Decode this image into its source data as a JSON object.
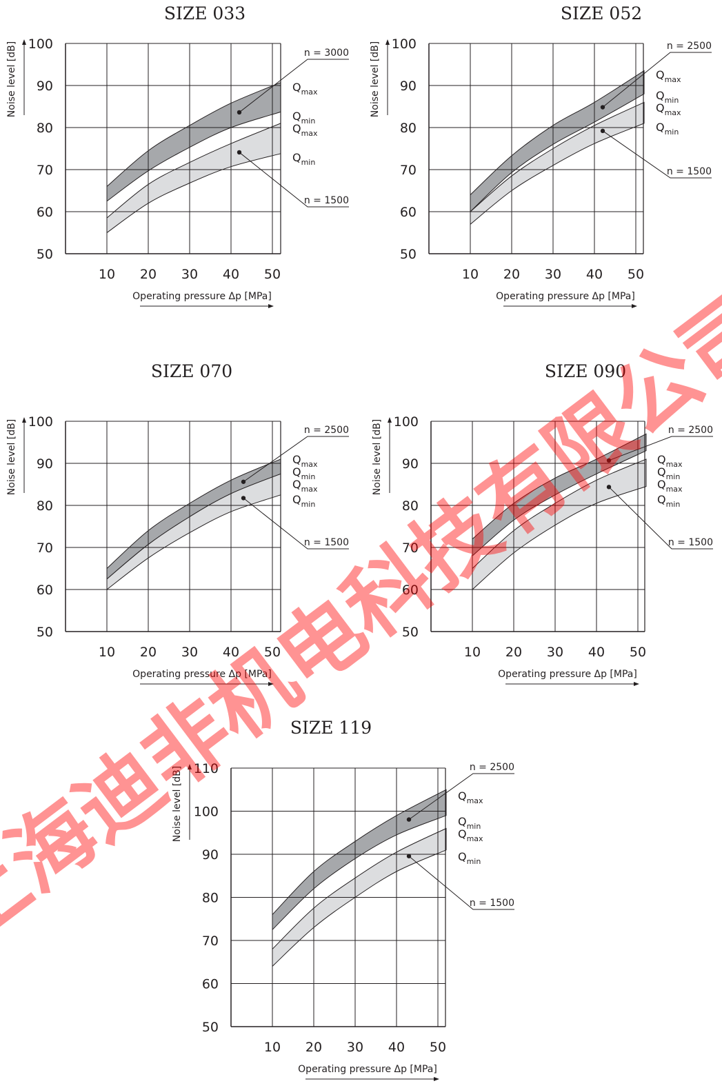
{
  "chart_data": [
    {
      "type": "area",
      "title": "SIZE 033",
      "xlabel": "Operating pressure Δp [MPa]",
      "ylabel": "Noise level [dB]",
      "xticks": [
        10,
        20,
        30,
        40,
        50
      ],
      "yticks": [
        50,
        60,
        70,
        80,
        90,
        100
      ],
      "xlim": [
        0,
        52
      ],
      "ylim": [
        50,
        100
      ],
      "series": [
        {
          "name": "n = 3000",
          "type": "band",
          "shade": "dark",
          "x": [
            10,
            20,
            30,
            40,
            52
          ],
          "upper": [
            66.0,
            74.5,
            80.5,
            85.8,
            90.7
          ],
          "lower": [
            62.5,
            69.7,
            75.3,
            80.0,
            83.7
          ]
        },
        {
          "name": "n = 1500",
          "type": "band",
          "shade": "light",
          "x": [
            10,
            20,
            30,
            40,
            52
          ],
          "upper": [
            58.5,
            66.5,
            71.7,
            76.2,
            81.0
          ],
          "lower": [
            55.0,
            62.0,
            66.8,
            70.7,
            73.8
          ]
        }
      ],
      "series_labels": [
        {
          "text": "Q",
          "sub": "max"
        },
        {
          "text": "Q",
          "sub": "min"
        },
        {
          "text": "Q",
          "sub": "max"
        },
        {
          "text": "Q",
          "sub": "min"
        }
      ]
    },
    {
      "type": "area",
      "title": "SIZE 052",
      "xlabel": "Operating pressure Δp [MPa]",
      "ylabel": "Noise level [dB]",
      "xticks": [
        10,
        20,
        30,
        40,
        50
      ],
      "yticks": [
        50,
        60,
        70,
        80,
        90,
        100
      ],
      "xlim": [
        0,
        52
      ],
      "ylim": [
        50,
        100
      ],
      "series": [
        {
          "name": "n = 2500",
          "type": "band",
          "shade": "dark",
          "x": [
            10,
            20,
            30,
            40,
            52
          ],
          "upper": [
            64.0,
            73.3,
            80.5,
            86.0,
            93.5
          ],
          "lower": [
            60.0,
            69.3,
            76.0,
            81.3,
            88.0
          ]
        },
        {
          "name": "n = 1500",
          "type": "band",
          "shade": "light",
          "x": [
            10,
            20,
            30,
            40,
            52
          ],
          "upper": [
            60.0,
            68.5,
            75.0,
            80.5,
            86.0
          ],
          "lower": [
            57.0,
            65.0,
            71.0,
            76.2,
            81.0
          ]
        }
      ],
      "series_labels": [
        {
          "text": "Q",
          "sub": "max"
        },
        {
          "text": "Q",
          "sub": "min"
        },
        {
          "text": "Q",
          "sub": "max"
        },
        {
          "text": "Q",
          "sub": "min"
        }
      ]
    },
    {
      "type": "area",
      "title": "SIZE 070",
      "xlabel": "Operating pressure Δp [MPa]",
      "ylabel": "Noise level [dB]",
      "xticks": [
        10,
        20,
        30,
        40,
        50
      ],
      "yticks": [
        50,
        60,
        70,
        80,
        90,
        100
      ],
      "xlim": [
        0,
        52
      ],
      "ylim": [
        50,
        100
      ],
      "series": [
        {
          "name": "n = 2500",
          "type": "band",
          "shade": "dark",
          "x": [
            10,
            20,
            30,
            40,
            52
          ],
          "upper": [
            65.0,
            74.0,
            80.5,
            86.0,
            91.0
          ],
          "lower": [
            62.5,
            70.7,
            77.3,
            82.8,
            87.5
          ]
        },
        {
          "name": "n = 1500",
          "type": "band",
          "shade": "light",
          "x": [
            10,
            20,
            30,
            40,
            52
          ],
          "upper": [
            62.5,
            70.7,
            77.3,
            82.8,
            87.5
          ],
          "lower": [
            60.0,
            67.5,
            73.5,
            78.5,
            82.5
          ]
        }
      ],
      "series_labels": [
        {
          "text": "Q",
          "sub": "max"
        },
        {
          "text": "Q",
          "sub": "min"
        },
        {
          "text": "Q",
          "sub": "max"
        },
        {
          "text": "Q",
          "sub": "min"
        }
      ]
    },
    {
      "type": "area",
      "title": "SIZE 090",
      "xlabel": "Operating pressure Δp [MPa]",
      "ylabel": "Noise level [dB]",
      "xticks": [
        10,
        20,
        30,
        40,
        50
      ],
      "yticks": [
        50,
        60,
        70,
        80,
        90,
        100
      ],
      "xlim": [
        0,
        52
      ],
      "ylim": [
        50,
        100
      ],
      "series": [
        {
          "name": "n = 2500",
          "type": "band",
          "shade": "dark",
          "x": [
            10,
            20,
            30,
            40,
            52
          ],
          "upper": [
            72.0,
            80.5,
            86.5,
            91.0,
            97.0
          ],
          "lower": [
            68.0,
            76.5,
            82.5,
            87.5,
            93.0
          ]
        },
        {
          "name": "n = 1500",
          "type": "band",
          "shade": "light",
          "x": [
            10,
            20,
            30,
            40,
            52
          ],
          "upper": [
            65.0,
            74.0,
            80.5,
            86.0,
            91.0
          ],
          "lower": [
            60.0,
            68.7,
            75.3,
            80.5,
            84.5
          ]
        }
      ],
      "series_labels": [
        {
          "text": "Q",
          "sub": "max"
        },
        {
          "text": "Q",
          "sub": "min"
        },
        {
          "text": "Q",
          "sub": "max"
        },
        {
          "text": "Q",
          "sub": "min"
        }
      ]
    },
    {
      "type": "area",
      "title": "SIZE 119",
      "xlabel": "Operating pressure Δp [MPa]",
      "ylabel": "Noise level [dB]",
      "xticks": [
        10,
        20,
        30,
        40,
        50
      ],
      "yticks": [
        50,
        60,
        70,
        80,
        90,
        100,
        110
      ],
      "xlim": [
        0,
        52
      ],
      "ylim": [
        50,
        110
      ],
      "series": [
        {
          "name": "n = 2500",
          "type": "band",
          "shade": "dark",
          "x": [
            10,
            20,
            30,
            40,
            52
          ],
          "upper": [
            76.0,
            86.0,
            93.0,
            99.0,
            105.0
          ],
          "lower": [
            72.5,
            82.0,
            89.0,
            94.5,
            99.0
          ]
        },
        {
          "name": "n = 1500",
          "type": "band",
          "shade": "light",
          "x": [
            10,
            20,
            30,
            40,
            52
          ],
          "upper": [
            68.0,
            77.5,
            84.5,
            90.5,
            96.0
          ],
          "lower": [
            64.0,
            73.0,
            80.0,
            86.0,
            91.0
          ]
        }
      ],
      "series_labels": [
        {
          "text": "Q",
          "sub": "max"
        },
        {
          "text": "Q",
          "sub": "min"
        },
        {
          "text": "Q",
          "sub": "max"
        },
        {
          "text": "Q",
          "sub": "min"
        }
      ]
    }
  ],
  "watermark": "上海迪非机电科技有限公司",
  "colors": {
    "dark_band": "#a6a8ab",
    "light_band": "#dcdddf",
    "line": "#231f20",
    "watermark": "#ff0000"
  }
}
